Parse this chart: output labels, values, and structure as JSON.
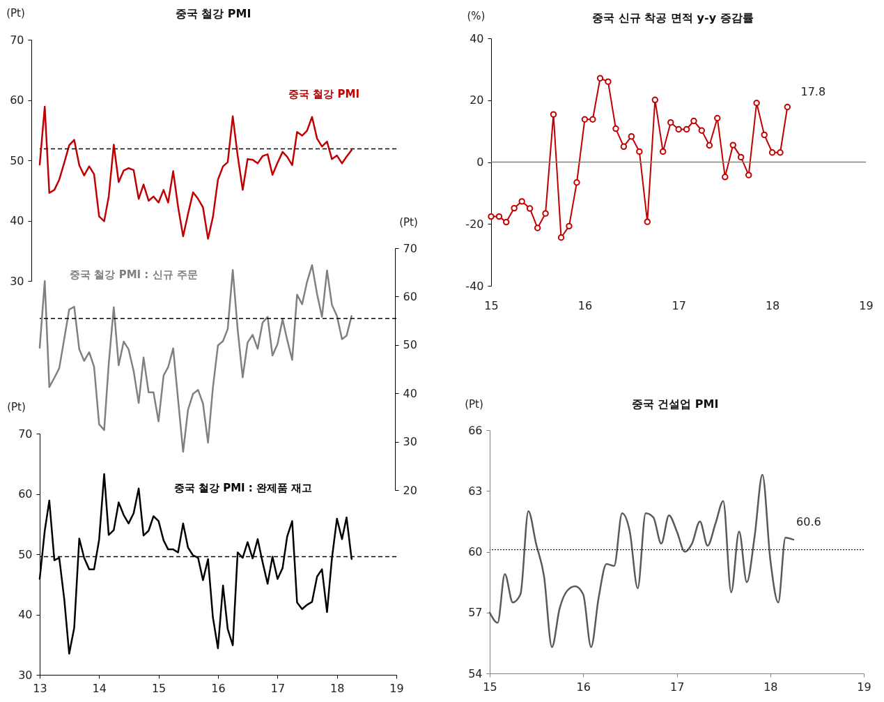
{
  "chart_data": [
    {
      "type": "line",
      "title": "중국 철강 PMI",
      "ylabel": "(Pt)",
      "tick_labels": "y",
      "x": [
        "2013-01",
        "2013-02",
        "2013-03",
        "2013-04",
        "2013-05",
        "2013-06",
        "2013-07",
        "2013-08",
        "2013-09",
        "2013-10",
        "2013-11",
        "2013-12",
        "2014-01",
        "2014-02",
        "2014-03",
        "2014-04",
        "2014-05",
        "2014-06",
        "2014-07",
        "2014-08",
        "2014-09",
        "2014-10",
        "2014-11",
        "2014-12",
        "2015-01",
        "2015-02",
        "2015-03",
        "2015-04",
        "2015-05",
        "2015-06",
        "2015-07",
        "2015-08",
        "2015-09",
        "2015-10",
        "2015-11",
        "2015-12",
        "2016-01",
        "2016-02",
        "2016-03",
        "2016-04",
        "2016-05",
        "2016-06",
        "2016-07",
        "2016-08",
        "2016-09",
        "2016-10",
        "2016-11",
        "2016-12",
        "2017-01",
        "2017-02",
        "2017-03",
        "2017-04",
        "2017-05",
        "2017-06",
        "2017-07",
        "2017-08",
        "2017-09",
        "2017-10",
        "2017-11",
        "2017-12",
        "2018-01",
        "2018-02",
        "2018-03",
        "2018-04"
      ],
      "series": [
        {
          "name": "중국 철강 PMI",
          "color": "#c00000",
          "values": [
            49.3,
            58.9,
            44.6,
            45.1,
            46.8,
            49.6,
            52.5,
            53.4,
            49.2,
            47.5,
            49.0,
            47.7,
            40.7,
            39.9,
            44.0,
            52.6,
            46.4,
            48.3,
            48.7,
            48.4,
            43.6,
            46.0,
            43.3,
            44.0,
            43.0,
            45.1,
            43.0,
            48.2,
            42.3,
            37.4,
            41.1,
            44.7,
            43.6,
            42.2,
            37.0,
            40.6,
            46.8,
            49.0,
            49.7,
            57.3,
            50.8,
            45.1,
            50.2,
            50.1,
            49.5,
            50.7,
            51.0,
            47.6,
            49.6,
            51.4,
            50.6,
            49.2,
            54.7,
            54.1,
            54.9,
            57.2,
            53.6,
            52.3,
            53.1,
            50.2,
            50.8,
            49.5,
            50.6,
            51.7
          ]
        }
      ],
      "xlim": [
        "2013-01",
        "2019-01"
      ],
      "ylim": [
        30,
        70
      ],
      "yticks": [
        30,
        40,
        50,
        60,
        70
      ],
      "ref_lines": [
        {
          "axis": "y",
          "value": 51.9,
          "line_style": "dashed",
          "color": "#000000"
        }
      ]
    },
    {
      "type": "line",
      "ylabel": "(Pt)",
      "tick_labels": "y",
      "x": [
        "2013-01",
        "2013-02",
        "2013-03",
        "2013-04",
        "2013-05",
        "2013-06",
        "2013-07",
        "2013-08",
        "2013-09",
        "2013-10",
        "2013-11",
        "2013-12",
        "2014-01",
        "2014-02",
        "2014-03",
        "2014-04",
        "2014-05",
        "2014-06",
        "2014-07",
        "2014-08",
        "2014-09",
        "2014-10",
        "2014-11",
        "2014-12",
        "2015-01",
        "2015-02",
        "2015-03",
        "2015-04",
        "2015-05",
        "2015-06",
        "2015-07",
        "2015-08",
        "2015-09",
        "2015-10",
        "2015-11",
        "2015-12",
        "2016-01",
        "2016-02",
        "2016-03",
        "2016-04",
        "2016-05",
        "2016-06",
        "2016-07",
        "2016-08",
        "2016-09",
        "2016-10",
        "2016-11",
        "2016-12",
        "2017-01",
        "2017-02",
        "2017-03",
        "2017-04",
        "2017-05",
        "2017-06",
        "2017-07",
        "2017-08",
        "2017-09",
        "2017-10",
        "2017-11",
        "2017-12",
        "2018-01",
        "2018-02",
        "2018-03",
        "2018-04"
      ],
      "series": [
        {
          "name": "중국 철강 PMI : 신규 주문",
          "color": "#808080",
          "values": [
            49.4,
            63.2,
            41.3,
            43.2,
            45.2,
            51.3,
            57.3,
            57.9,
            49.1,
            46.7,
            48.5,
            45.5,
            33.6,
            32.4,
            46.1,
            57.8,
            45.8,
            50.7,
            49.1,
            44.6,
            38.0,
            47.4,
            40.2,
            40.2,
            34.2,
            43.7,
            45.4,
            49.3,
            38.7,
            27.9,
            36.6,
            39.9,
            40.7,
            37.9,
            29.8,
            41.2,
            49.9,
            50.8,
            53.3,
            65.5,
            53.2,
            43.3,
            50.5,
            52.1,
            49.2,
            54.6,
            55.8,
            47.8,
            50.2,
            55.3,
            51.1,
            46.9,
            60.4,
            58.4,
            63.0,
            66.5,
            60.5,
            55.8,
            65.4,
            58.3,
            56.0,
            51.2,
            51.9,
            56.0
          ]
        }
      ],
      "xlim": [
        "2013-01",
        "2019-01"
      ],
      "ylim": [
        20,
        70
      ],
      "yticks": [
        20,
        30,
        40,
        50,
        60,
        70
      ],
      "ref_lines": [
        {
          "axis": "y",
          "value": 55.5,
          "line_style": "dashed",
          "color": "#000000"
        }
      ]
    },
    {
      "type": "line",
      "ylabel": "(Pt)",
      "x": [
        "2013-01",
        "2013-02",
        "2013-03",
        "2013-04",
        "2013-05",
        "2013-06",
        "2013-07",
        "2013-08",
        "2013-09",
        "2013-10",
        "2013-11",
        "2013-12",
        "2014-01",
        "2014-02",
        "2014-03",
        "2014-04",
        "2014-05",
        "2014-06",
        "2014-07",
        "2014-08",
        "2014-09",
        "2014-10",
        "2014-11",
        "2014-12",
        "2015-01",
        "2015-02",
        "2015-03",
        "2015-04",
        "2015-05",
        "2015-06",
        "2015-07",
        "2015-08",
        "2015-09",
        "2015-10",
        "2015-11",
        "2015-12",
        "2016-01",
        "2016-02",
        "2016-03",
        "2016-04",
        "2016-05",
        "2016-06",
        "2016-07",
        "2016-08",
        "2016-09",
        "2016-10",
        "2016-11",
        "2016-12",
        "2017-01",
        "2017-02",
        "2017-03",
        "2017-04",
        "2017-05",
        "2017-06",
        "2017-07",
        "2017-08",
        "2017-09",
        "2017-10",
        "2017-11",
        "2017-12",
        "2018-01",
        "2018-02",
        "2018-03",
        "2018-04"
      ],
      "series": [
        {
          "name": "중국 철강 PMI : 완제품 재고",
          "color": "#000000",
          "values": [
            45.9,
            53.9,
            58.9,
            49.0,
            49.4,
            42.5,
            33.5,
            37.8,
            52.6,
            49.4,
            47.5,
            47.5,
            52.4,
            63.3,
            53.2,
            54.0,
            58.6,
            56.5,
            55.1,
            56.8,
            60.9,
            53.1,
            53.9,
            56.3,
            55.5,
            52.3,
            50.8,
            50.8,
            50.3,
            55.1,
            51.1,
            49.8,
            49.4,
            45.7,
            49.2,
            39.5,
            34.4,
            44.8,
            37.6,
            34.9,
            50.3,
            49.4,
            52.0,
            49.3,
            52.5,
            48.7,
            45.1,
            49.6,
            45.9,
            47.7,
            52.9,
            55.5,
            42.0,
            40.9,
            41.6,
            42.1,
            46.3,
            47.5,
            40.4,
            49.3,
            55.9,
            52.5,
            56.1,
            49.2
          ]
        }
      ],
      "xlim": [
        "2013-01",
        "2019-01"
      ],
      "xticks": [
        {
          "value": "2013-01",
          "label": "13"
        },
        {
          "value": "2014-01",
          "label": "14"
        },
        {
          "value": "2015-01",
          "label": "15"
        },
        {
          "value": "2016-01",
          "label": "16"
        },
        {
          "value": "2017-01",
          "label": "17"
        },
        {
          "value": "2018-01",
          "label": "18"
        },
        {
          "value": "2019-01",
          "label": "19"
        }
      ],
      "ylim": [
        30,
        70
      ],
      "yticks": [
        30,
        40,
        50,
        60,
        70
      ],
      "ref_lines": [
        {
          "axis": "y",
          "value": 49.6,
          "line_style": "dashed",
          "color": "#000000"
        }
      ]
    },
    {
      "type": "line",
      "title": "중국 신규 착공 면적 y-y 증감률",
      "ylabel": "(%)",
      "marker": "circle",
      "x": [
        "2015-01",
        "2015-02",
        "2015-03",
        "2015-04",
        "2015-05",
        "2015-06",
        "2015-07",
        "2015-08",
        "2015-09",
        "2015-10",
        "2015-11",
        "2015-12",
        "2016-01",
        "2016-02",
        "2016-03",
        "2016-04",
        "2016-05",
        "2016-06",
        "2016-07",
        "2016-08",
        "2016-09",
        "2016-10",
        "2016-11",
        "2016-12",
        "2017-01",
        "2017-02",
        "2017-03",
        "2017-04",
        "2017-05",
        "2017-06",
        "2017-07",
        "2017-08",
        "2017-09",
        "2017-10",
        "2017-11",
        "2017-12",
        "2018-01",
        "2018-02",
        "2018-03"
      ],
      "series": [
        {
          "color": "#c00000",
          "values": [
            -17.6,
            -17.6,
            -19.4,
            -14.9,
            -12.7,
            -15.0,
            -21.3,
            -16.6,
            15.4,
            -24.4,
            -20.7,
            -6.6,
            13.8,
            13.8,
            27.1,
            26.0,
            10.8,
            5.0,
            8.3,
            3.4,
            -19.3,
            20.1,
            3.4,
            12.8,
            10.6,
            10.6,
            13.3,
            10.2,
            5.4,
            14.2,
            -4.8,
            5.5,
            1.6,
            -4.2,
            19.1,
            8.8,
            3.1,
            3.1,
            17.8
          ]
        }
      ],
      "xlim": [
        "2015-01",
        "2019-01"
      ],
      "xticks": [
        {
          "value": "2015-01",
          "label": "15"
        },
        {
          "value": "2016-01",
          "label": "16"
        },
        {
          "value": "2017-01",
          "label": "17"
        },
        {
          "value": "2018-01",
          "label": "18"
        },
        {
          "value": "2019-01",
          "label": "19"
        }
      ],
      "ylim": [
        -40,
        40
      ],
      "yticks": [
        -40,
        -20,
        0,
        20,
        40
      ],
      "ref_lines": [
        {
          "axis": "y",
          "value": 0,
          "line_style": "solid",
          "color": "#808080"
        }
      ],
      "annotations": [
        {
          "text": "17.8",
          "x": "2018-03",
          "y": 17.8
        }
      ]
    },
    {
      "type": "line",
      "title": "중국 건설업 PMI",
      "ylabel": "(Pt)",
      "x": [
        "2015-01",
        "2015-02",
        "2015-03",
        "2015-04",
        "2015-05",
        "2015-06",
        "2015-07",
        "2015-08",
        "2015-09",
        "2015-10",
        "2015-11",
        "2015-12",
        "2016-01",
        "2016-02",
        "2016-03",
        "2016-04",
        "2016-05",
        "2016-06",
        "2016-07",
        "2016-08",
        "2016-09",
        "2016-10",
        "2016-11",
        "2016-12",
        "2017-01",
        "2017-02",
        "2017-03",
        "2017-04",
        "2017-05",
        "2017-06",
        "2017-07",
        "2017-08",
        "2017-09",
        "2017-10",
        "2017-11",
        "2017-12",
        "2018-01",
        "2018-02",
        "2018-03",
        "2018-04"
      ],
      "series": [
        {
          "color": "#595959",
          "values": [
            57.0,
            56.5,
            58.9,
            57.5,
            57.9,
            62.0,
            60.4,
            58.8,
            55.3,
            57.2,
            58.1,
            58.3,
            57.9,
            55.3,
            57.7,
            59.4,
            59.3,
            61.9,
            61.0,
            58.2,
            61.9,
            61.7,
            60.4,
            61.8,
            61.0,
            60.0,
            60.4,
            61.5,
            60.3,
            61.4,
            62.5,
            58.0,
            61.0,
            58.5,
            60.8,
            63.8,
            59.6,
            57.5,
            60.7,
            60.6
          ]
        }
      ],
      "xlim": [
        "2015-01",
        "2019-01"
      ],
      "xticks": [
        {
          "value": "2015-01",
          "label": "15"
        },
        {
          "value": "2016-01",
          "label": "16"
        },
        {
          "value": "2017-01",
          "label": "17"
        },
        {
          "value": "2018-01",
          "label": "18"
        },
        {
          "value": "2019-01",
          "label": "19"
        }
      ],
      "ylim": [
        54,
        66
      ],
      "yticks": [
        54,
        57,
        60,
        63,
        66
      ],
      "ref_lines": [
        {
          "axis": "y",
          "value": 60.1,
          "line_style": "dotted",
          "color": "#000000"
        }
      ],
      "annotations": [
        {
          "text": "60.6",
          "x": "2018-04",
          "y": 60.6
        }
      ]
    }
  ]
}
